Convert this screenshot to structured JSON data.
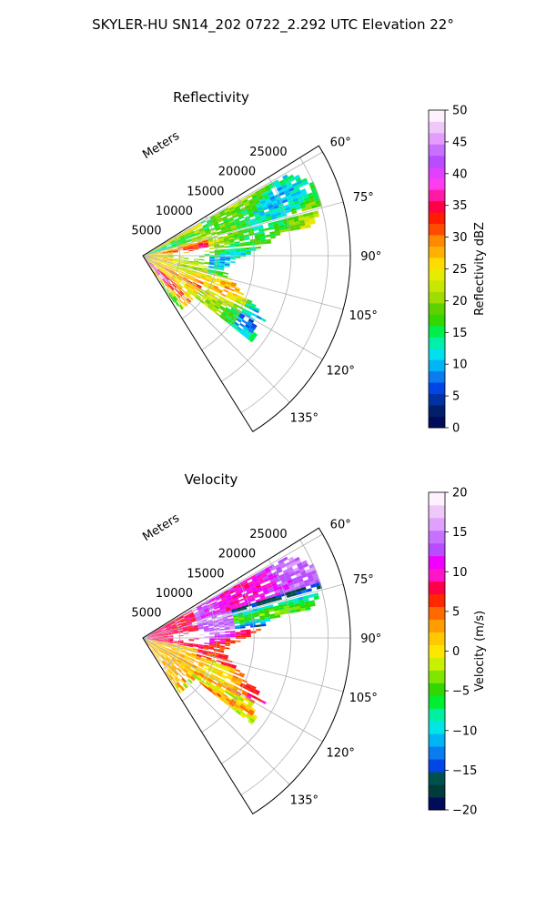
{
  "figure": {
    "title": "SKYLER-HU  SN14_202  0722_2.292 UTC Elevation 22°"
  },
  "colors": {
    "refl_stops": [
      "#000b5a",
      "#00206a",
      "#0031a5",
      "#0046e6",
      "#0a7cf0",
      "#00b4f5",
      "#00e1f0",
      "#00f0a8",
      "#00ee4a",
      "#32d600",
      "#5ed200",
      "#9fdc00",
      "#c8e600",
      "#e6ec00",
      "#ffdc00",
      "#ffb000",
      "#ff8a00",
      "#ff4a00",
      "#ff1c00",
      "#ff0048",
      "#ff1aa6",
      "#ff3cf0",
      "#e040ff",
      "#b84cff",
      "#c870ff",
      "#e49cff",
      "#f0c8f8",
      "#fff0ff"
    ],
    "vel_stops": [
      "#000b5a",
      "#003c3c",
      "#00504e",
      "#0046e6",
      "#0a7cf0",
      "#00b4f5",
      "#00e6e6",
      "#00f0a0",
      "#00ee30",
      "#32d600",
      "#7fe600",
      "#c8f000",
      "#ffe600",
      "#ffc800",
      "#ff9c00",
      "#ff6a00",
      "#ff2800",
      "#ff0048",
      "#ff14c8",
      "#f000ff",
      "#b84cff",
      "#c870ff",
      "#e0a0ff",
      "#f0c8f8",
      "#fff0ff"
    ]
  },
  "chart_data": [
    {
      "type": "heatmap",
      "projection": "polar-sector (PPI)",
      "title": "Reflectivity",
      "radial_label": "Meters",
      "radial_ticks": [
        5000,
        10000,
        15000,
        20000,
        25000
      ],
      "radial_tick_labels": [
        "5000",
        "10000",
        "15000",
        "20000",
        "25000"
      ],
      "rmax": 28000,
      "azimuth_range_deg": [
        58,
        148
      ],
      "azimuth_ticks": [
        60,
        75,
        90,
        105,
        120,
        135
      ],
      "azimuth_tick_labels": [
        "60°",
        "75°",
        "90°",
        "105°",
        "120°",
        "135°"
      ],
      "grid": true,
      "colorbar": {
        "label": "Reflectivity dBZ",
        "range": [
          0,
          50
        ],
        "ticks": [
          0,
          5,
          10,
          15,
          20,
          25,
          30,
          35,
          40,
          45,
          50
        ],
        "tick_labels": [
          "0",
          "5",
          "10",
          "15",
          "20",
          "25",
          "30",
          "35",
          "40",
          "45",
          "50"
        ]
      }
    },
    {
      "type": "heatmap",
      "projection": "polar-sector (PPI)",
      "title": "Velocity",
      "radial_label": "Meters",
      "radial_ticks": [
        5000,
        10000,
        15000,
        20000,
        25000
      ],
      "radial_tick_labels": [
        "5000",
        "10000",
        "15000",
        "20000",
        "25000"
      ],
      "rmax": 28000,
      "azimuth_range_deg": [
        58,
        148
      ],
      "azimuth_ticks": [
        60,
        75,
        90,
        105,
        120,
        135
      ],
      "azimuth_tick_labels": [
        "60°",
        "75°",
        "90°",
        "105°",
        "120°",
        "135°"
      ],
      "grid": true,
      "colorbar": {
        "label": "Velocity (m/s)",
        "range": [
          -20,
          20
        ],
        "ticks": [
          -20,
          -15,
          -10,
          -5,
          0,
          5,
          10,
          15,
          20
        ],
        "tick_labels": [
          "−20",
          "−15",
          "−10",
          "−5",
          "0",
          "5",
          "10",
          "15",
          "20"
        ]
      }
    }
  ]
}
